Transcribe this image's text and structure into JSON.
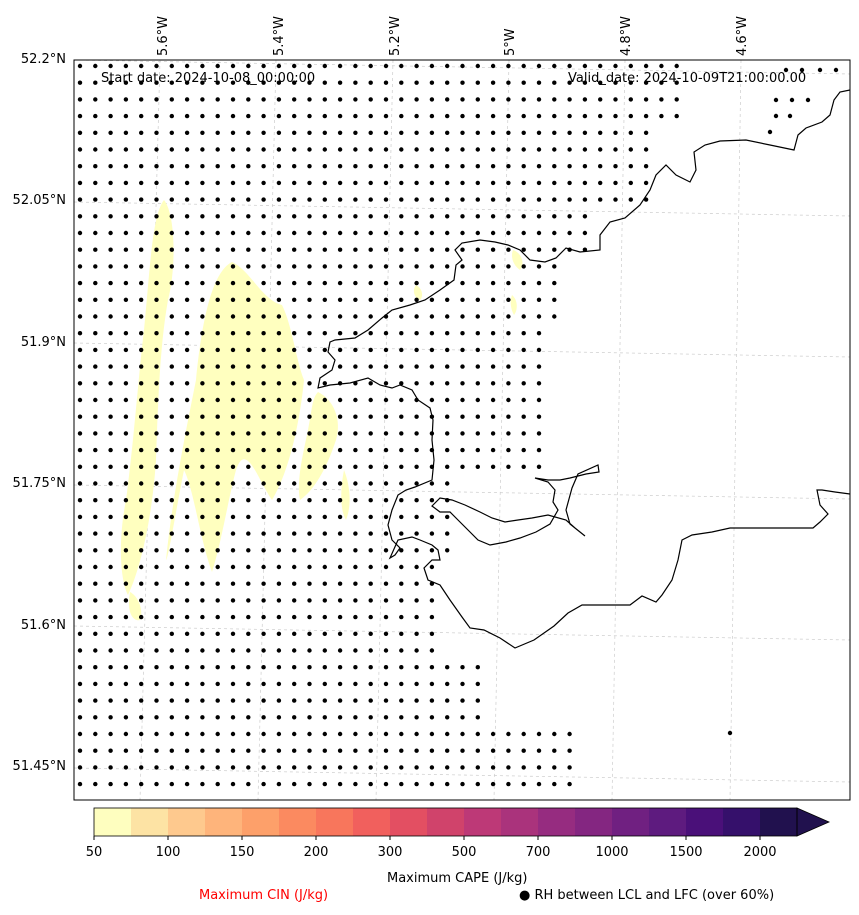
{
  "map": {
    "start_date": "Start date: 2024-10-08_00:00:00",
    "valid_date": "Valid_date: 2024-10-09T21:00:00.00",
    "lat_labels": [
      "52.2°N",
      "52.05°N",
      "51.9°N",
      "51.75°N",
      "51.6°N",
      "51.45°N"
    ],
    "lon_labels": [
      "5.6°W",
      "5.4°W",
      "5.2°W",
      "5°W",
      "4.8°W",
      "4.6°W"
    ],
    "cape_shading_color": "#ffffbf",
    "land_outline_color": "#000000",
    "gridline_color": "#cccccc",
    "dot_marker_color": "#000000"
  },
  "colorbar": {
    "label": "Maximum CAPE (J/kg)",
    "ticks": [
      "50",
      "100",
      "150",
      "200",
      "300",
      "500",
      "700",
      "1000",
      "1500",
      "2000"
    ],
    "levels": [
      50,
      75,
      100,
      125,
      150,
      175,
      200,
      250,
      300,
      400,
      500,
      600,
      700,
      850,
      1000,
      1250,
      1500,
      1750,
      2000
    ],
    "colors": [
      "#fefebf",
      "#fde3a4",
      "#fec98e",
      "#feb47b",
      "#fda06a",
      "#fb8a60",
      "#f8765c",
      "#f1605d",
      "#e34f62",
      "#d0436b",
      "#bd3977",
      "#aa337c",
      "#962c80",
      "#842681",
      "#702081",
      "#5e1b7f",
      "#4a1079",
      "#35106b",
      "#21114e"
    ],
    "extend": "max"
  },
  "legend": {
    "cin_label": "Maximum CIN (J/kg)",
    "cin_color": "#ff0000",
    "rh_label": "● RH between LCL and LFC (over 60%)"
  }
}
